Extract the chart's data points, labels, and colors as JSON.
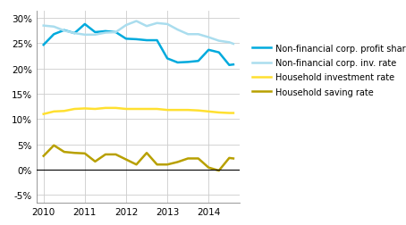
{
  "xlim": [
    2009.83,
    2014.75
  ],
  "ylim": [
    -0.065,
    0.315
  ],
  "yticks": [
    -0.05,
    0.0,
    0.05,
    0.1,
    0.15,
    0.2,
    0.25,
    0.3
  ],
  "xticks": [
    2010,
    2011,
    2012,
    2013,
    2014
  ],
  "series": {
    "profit_share": {
      "label": "Non-financial corp. profit share",
      "color": "#00AADD",
      "linewidth": 1.8,
      "x": [
        2010.0,
        2010.25,
        2010.5,
        2010.75,
        2011.0,
        2011.25,
        2011.5,
        2011.75,
        2012.0,
        2012.25,
        2012.5,
        2012.75,
        2013.0,
        2013.25,
        2013.5,
        2013.75,
        2014.0,
        2014.25,
        2014.5,
        2014.6
      ],
      "y": [
        0.247,
        0.268,
        0.276,
        0.27,
        0.288,
        0.272,
        0.274,
        0.272,
        0.259,
        0.258,
        0.256,
        0.256,
        0.22,
        0.212,
        0.213,
        0.215,
        0.237,
        0.232,
        0.207,
        0.208
      ]
    },
    "inv_rate": {
      "label": "Non-financial corp. inv. rate",
      "color": "#AADDEE",
      "linewidth": 1.8,
      "x": [
        2010.0,
        2010.25,
        2010.5,
        2010.75,
        2011.0,
        2011.25,
        2011.5,
        2011.75,
        2012.0,
        2012.25,
        2012.5,
        2012.75,
        2013.0,
        2013.25,
        2013.5,
        2013.75,
        2014.0,
        2014.25,
        2014.5,
        2014.6
      ],
      "y": [
        0.285,
        0.283,
        0.275,
        0.27,
        0.267,
        0.267,
        0.271,
        0.272,
        0.286,
        0.294,
        0.284,
        0.29,
        0.288,
        0.277,
        0.268,
        0.268,
        0.262,
        0.255,
        0.252,
        0.249
      ]
    },
    "hh_inv": {
      "label": "Household investment rate",
      "color": "#FFE030",
      "linewidth": 1.8,
      "x": [
        2010.0,
        2010.25,
        2010.5,
        2010.75,
        2011.0,
        2011.25,
        2011.5,
        2011.75,
        2012.0,
        2012.25,
        2012.5,
        2012.75,
        2013.0,
        2013.25,
        2013.5,
        2013.75,
        2014.0,
        2014.25,
        2014.5,
        2014.6
      ],
      "y": [
        0.11,
        0.115,
        0.116,
        0.12,
        0.121,
        0.12,
        0.122,
        0.122,
        0.12,
        0.12,
        0.12,
        0.12,
        0.118,
        0.118,
        0.118,
        0.117,
        0.115,
        0.113,
        0.112,
        0.112
      ]
    },
    "hh_saving": {
      "label": "Household saving rate",
      "color": "#B8A000",
      "linewidth": 1.8,
      "x": [
        2010.0,
        2010.25,
        2010.5,
        2010.75,
        2011.0,
        2011.25,
        2011.5,
        2011.75,
        2012.0,
        2012.25,
        2012.5,
        2012.75,
        2013.0,
        2013.25,
        2013.5,
        2013.75,
        2014.0,
        2014.25,
        2014.5,
        2014.6
      ],
      "y": [
        0.027,
        0.048,
        0.035,
        0.033,
        0.032,
        0.016,
        0.03,
        0.03,
        0.02,
        0.01,
        0.033,
        0.01,
        0.01,
        0.015,
        0.022,
        0.022,
        0.004,
        -0.002,
        0.023,
        0.022
      ]
    }
  },
  "background_color": "#ffffff",
  "grid_color": "#cccccc",
  "legend_fontsize": 7.0,
  "tick_fontsize": 7.5
}
